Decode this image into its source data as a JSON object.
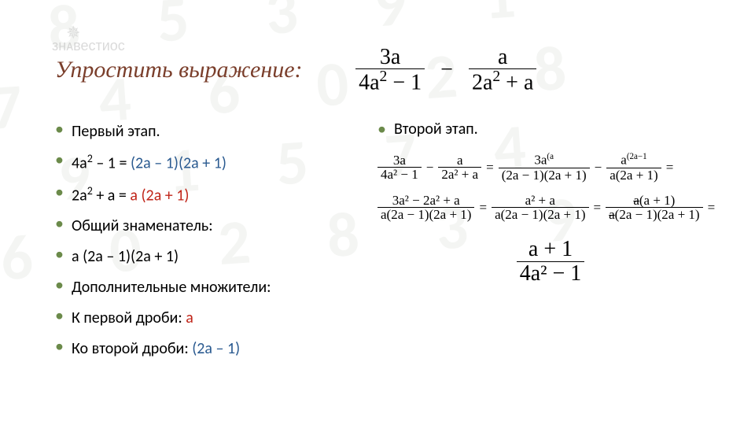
{
  "bg_text": "2 8 5 3 9 1\n 7 4 6 0 2 8\n3 9 1 5 7 4\n 6 0 2 8 3 9",
  "watermark_logo": "✵",
  "watermark_text": "знᴀвестиос",
  "title": "Упростить выражение:",
  "main_expr": {
    "left_num": "3а",
    "left_den_pre": "4а",
    "left_den_post": " − 1",
    "right_num": "а",
    "right_den_pre": "2а",
    "right_den_post": " + а"
  },
  "left": {
    "head": "Первый этап.",
    "l1_a": "4а",
    "l1_b": " – 1 = ",
    "l1_c": "(2а – 1)(2а + 1)",
    "l2_a": "2а",
    "l2_b": " + а = ",
    "l2_c": "а (2а + 1)",
    "l3": "Общий знаменатель:",
    "l4": "а (2а – 1)(2а + 1)",
    "l5": "Дополнительные множители:",
    "l6_a": "К первой дроби: ",
    "l6_b": "а",
    "l7_a": "Ко второй дроби: ",
    "l7_b": "(2а – 1)"
  },
  "right": {
    "head": "Второй этап."
  },
  "eq1": {
    "f1_num": "3а",
    "f1_den": "4а² − 1",
    "f2_num": "а",
    "f2_den": "2а² + а",
    "f3_sup": "(а",
    "f3_num": "3а",
    "f3_den": "(2а − 1)(2а + 1)",
    "f4_sup": "(2а−1",
    "f4_num": "а",
    "f4_den": "а(2а + 1)"
  },
  "eq2": {
    "f1_num": "3а² − 2а² + а",
    "f1_den": "а(2а − 1)(2а + 1)",
    "f2_num": "а² + а",
    "f2_den": "а(2а − 1)(2а + 1)",
    "f3_num_a": "а",
    "f3_num_b": "(а + 1)",
    "f3_den_a": "а",
    "f3_den_b": "(2а − 1)(2а + 1)"
  },
  "final": {
    "num": "а + 1",
    "den": "4а² − 1"
  },
  "colors": {
    "title": "#7a3e2b",
    "bullet": "#6b8a4a",
    "red": "#c02418",
    "blue": "#2a5a90",
    "bg_tint": "#6b7b60"
  },
  "fonts": {
    "title_family": "Times New Roman, serif",
    "title_size_pt": 22,
    "body_size_pt": 15,
    "math_family": "Times New Roman, serif"
  }
}
